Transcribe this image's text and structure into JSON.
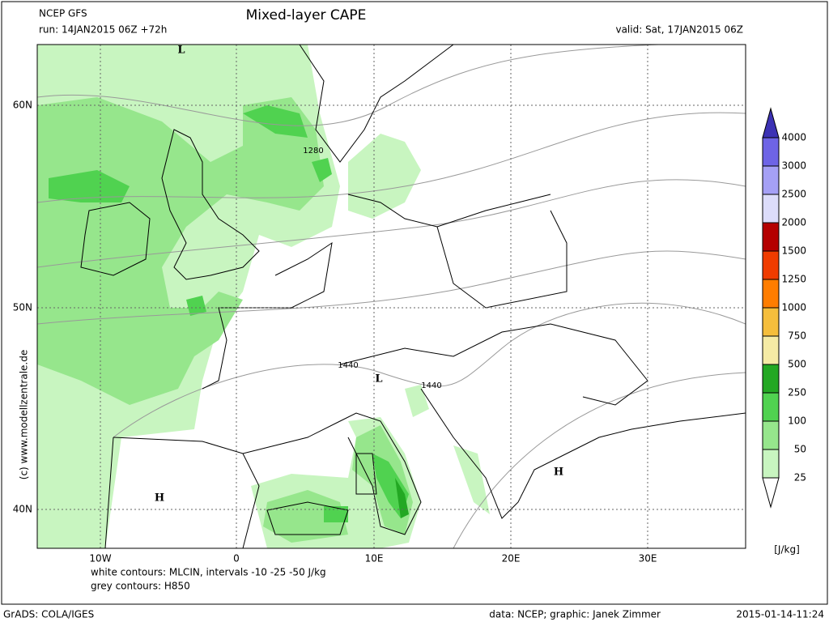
{
  "header": {
    "model": "NCEP GFS",
    "run": "run: 14JAN2015 06Z +72h",
    "title": "Mixed-layer CAPE",
    "valid": "valid: Sat, 17JAN2015 06Z"
  },
  "map": {
    "lat_labels": [
      "60N",
      "50N",
      "40N"
    ],
    "lon_labels": [
      "10W",
      "0",
      "10E",
      "20E",
      "30E"
    ],
    "pressure_labels": [
      "L",
      "L",
      "H",
      "H"
    ],
    "contour_labels": [
      "1280",
      "1440",
      "1440"
    ],
    "copyright": "(c)  www.modellzentrale.de"
  },
  "notes": {
    "white_contours": "white contours: MLCIN, intervals -10 -25 -50 J/kg",
    "grey_contours": "grey contours: H850"
  },
  "colorbar": {
    "levels": [
      25,
      50,
      100,
      250,
      500,
      750,
      1000,
      1250,
      1500,
      2000,
      2500,
      3000,
      4000
    ],
    "colors": [
      "#c8f5c0",
      "#96e68c",
      "#50d250",
      "#23a823",
      "#f5eba5",
      "#f5be3c",
      "#ff7d00",
      "#f03c00",
      "#b40000",
      "#dcdcfa",
      "#a5a0f5",
      "#6e64e6",
      "#3c32b4"
    ],
    "unit": "[J/kg]"
  },
  "footer": {
    "software": "GrADS: COLA/IGES",
    "credit": "data: NCEP; graphic: Janek Zimmer",
    "timestamp": "2015-01-14-11:24"
  }
}
